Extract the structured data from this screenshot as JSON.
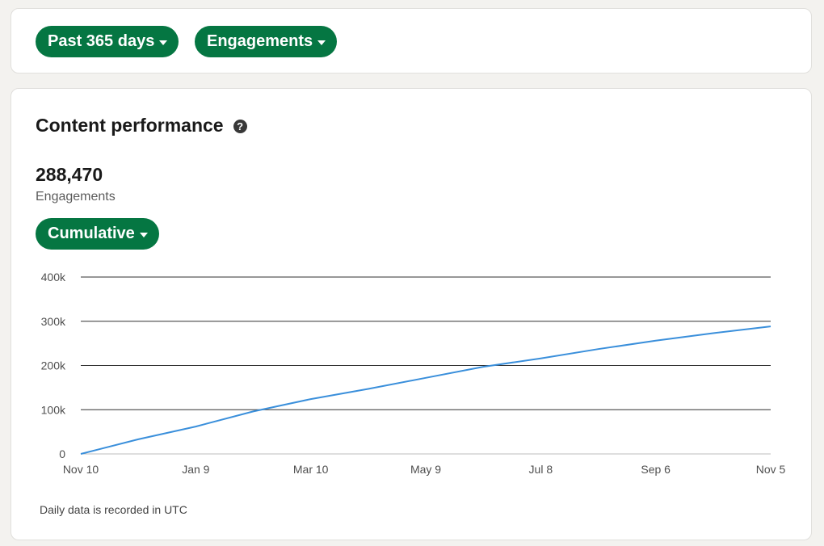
{
  "filters": {
    "range_label": "Past 365 days",
    "metric_label": "Engagements"
  },
  "performance": {
    "title": "Content performance",
    "help_icon": "question-circle-icon",
    "total_value": "288,470",
    "total_label": "Engagements",
    "mode_label": "Cumulative",
    "footnote": "Daily data is recorded in UTC"
  },
  "colors": {
    "accent": "#057642",
    "line": "#3a8fdb",
    "background": "#f3f2ef"
  },
  "chart_data": {
    "type": "line",
    "title": "",
    "xlabel": "",
    "ylabel": "",
    "x_tick_labels": [
      "Nov 10",
      "Jan 9",
      "Mar 10",
      "May 9",
      "Jul 8",
      "Sep 6",
      "Nov 5"
    ],
    "y_tick_labels": [
      "0",
      "100k",
      "200k",
      "300k",
      "400k"
    ],
    "y_ticks": [
      0,
      100000,
      200000,
      300000,
      400000
    ],
    "ylim": [
      0,
      400000
    ],
    "grid": true,
    "legend": "none",
    "series": [
      {
        "x": [
          "Nov 10",
          "Dec 10",
          "Jan 9",
          "Feb 9",
          "Mar 10",
          "Apr 9",
          "May 9",
          "Jun 8",
          "Jul 8",
          "Aug 7",
          "Sep 6",
          "Oct 6",
          "Nov 5"
        ],
        "values": [
          0,
          33000,
          62000,
          96000,
          124000,
          147000,
          172000,
          197000,
          216000,
          237000,
          256000,
          273000,
          288470
        ]
      }
    ]
  }
}
